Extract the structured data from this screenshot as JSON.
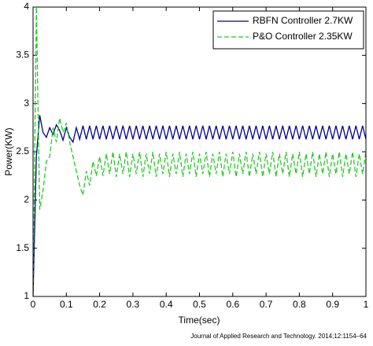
{
  "chart_data": {
    "type": "line",
    "xlabel": "Time(sec)",
    "ylabel": "Power(KW)",
    "source": "Journal of Applied Research and Technology. 2014;12:1154–64",
    "xlim": [
      0,
      1
    ],
    "ylim": [
      1,
      4
    ],
    "xticks": [
      0,
      0.1,
      0.2,
      0.3,
      0.4,
      0.5,
      0.6,
      0.7,
      0.8,
      0.9,
      1
    ],
    "yticks": [
      1,
      1.5,
      2,
      2.5,
      3,
      3.5,
      4
    ],
    "legend": "upper right",
    "x": [
      0,
      0.01,
      0.02,
      0.03,
      0.04,
      0.05,
      0.06,
      0.07,
      0.08,
      0.09,
      0.1,
      0.11,
      0.12,
      0.13,
      0.14,
      0.15,
      0.16,
      0.17,
      0.18,
      0.19,
      0.2,
      0.21,
      0.22,
      0.23,
      0.24,
      0.25,
      0.26,
      0.27,
      0.28,
      0.29,
      0.3,
      0.31,
      0.32,
      0.33,
      0.34,
      0.35,
      0.36,
      0.37,
      0.38,
      0.39,
      0.4,
      0.41,
      0.42,
      0.43,
      0.44,
      0.45,
      0.46,
      0.47,
      0.48,
      0.49,
      0.5,
      0.51,
      0.52,
      0.53,
      0.54,
      0.55,
      0.56,
      0.57,
      0.58,
      0.59,
      0.6,
      0.61,
      0.62,
      0.63,
      0.64,
      0.65,
      0.66,
      0.67,
      0.68,
      0.69,
      0.7,
      0.71,
      0.72,
      0.73,
      0.74,
      0.75,
      0.76,
      0.77,
      0.78,
      0.79,
      0.8,
      0.81,
      0.82,
      0.83,
      0.84,
      0.85,
      0.86,
      0.87,
      0.88,
      0.89,
      0.9,
      0.91,
      0.92,
      0.93,
      0.94,
      0.95,
      0.96,
      0.97,
      0.98,
      0.99,
      1
    ],
    "series": [
      {
        "name": "RBFN Controller 2.7KW",
        "color": "#00008b",
        "line_style": "solid",
        "values": [
          1.0,
          2.45,
          2.88,
          2.7,
          2.65,
          2.75,
          2.68,
          2.78,
          2.72,
          2.62,
          2.75,
          2.65,
          2.6,
          2.75,
          2.63,
          2.77,
          2.63,
          2.77,
          2.63,
          2.77,
          2.63,
          2.77,
          2.63,
          2.77,
          2.63,
          2.77,
          2.63,
          2.77,
          2.63,
          2.77,
          2.63,
          2.77,
          2.63,
          2.77,
          2.63,
          2.77,
          2.63,
          2.77,
          2.63,
          2.77,
          2.63,
          2.77,
          2.63,
          2.77,
          2.63,
          2.77,
          2.63,
          2.77,
          2.63,
          2.77,
          2.63,
          2.77,
          2.63,
          2.77,
          2.63,
          2.77,
          2.63,
          2.77,
          2.63,
          2.77,
          2.63,
          2.77,
          2.63,
          2.77,
          2.63,
          2.77,
          2.63,
          2.77,
          2.63,
          2.77,
          2.63,
          2.77,
          2.63,
          2.77,
          2.63,
          2.77,
          2.63,
          2.77,
          2.63,
          2.77,
          2.63,
          2.77,
          2.63,
          2.77,
          2.63,
          2.77,
          2.63,
          2.77,
          2.63,
          2.77,
          2.63,
          2.77,
          2.63,
          2.77,
          2.63,
          2.77,
          2.63,
          2.77,
          2.63,
          2.77,
          2.63
        ]
      },
      {
        "name": "P&O Controller 2.35KW",
        "color": "#22cc22",
        "line_style": "dashed",
        "values": [
          1.0,
          4.0,
          1.9,
          2.1,
          2.4,
          2.45,
          2.75,
          2.6,
          2.85,
          2.7,
          2.8,
          2.6,
          2.45,
          2.3,
          2.15,
          2.05,
          2.3,
          2.15,
          2.4,
          2.25,
          2.45,
          2.25,
          2.48,
          2.27,
          2.5,
          2.24,
          2.48,
          2.27,
          2.5,
          2.24,
          2.48,
          2.27,
          2.5,
          2.24,
          2.48,
          2.27,
          2.5,
          2.24,
          2.48,
          2.27,
          2.5,
          2.24,
          2.48,
          2.27,
          2.5,
          2.24,
          2.48,
          2.27,
          2.5,
          2.24,
          2.48,
          2.27,
          2.5,
          2.24,
          2.48,
          2.27,
          2.5,
          2.24,
          2.48,
          2.27,
          2.5,
          2.24,
          2.48,
          2.27,
          2.5,
          2.24,
          2.48,
          2.27,
          2.5,
          2.24,
          2.48,
          2.27,
          2.5,
          2.24,
          2.48,
          2.27,
          2.5,
          2.24,
          2.48,
          2.27,
          2.5,
          2.24,
          2.48,
          2.27,
          2.5,
          2.24,
          2.48,
          2.27,
          2.5,
          2.24,
          2.48,
          2.27,
          2.5,
          2.24,
          2.48,
          2.27,
          2.5,
          2.24,
          2.48,
          2.27,
          2.5
        ]
      }
    ]
  }
}
